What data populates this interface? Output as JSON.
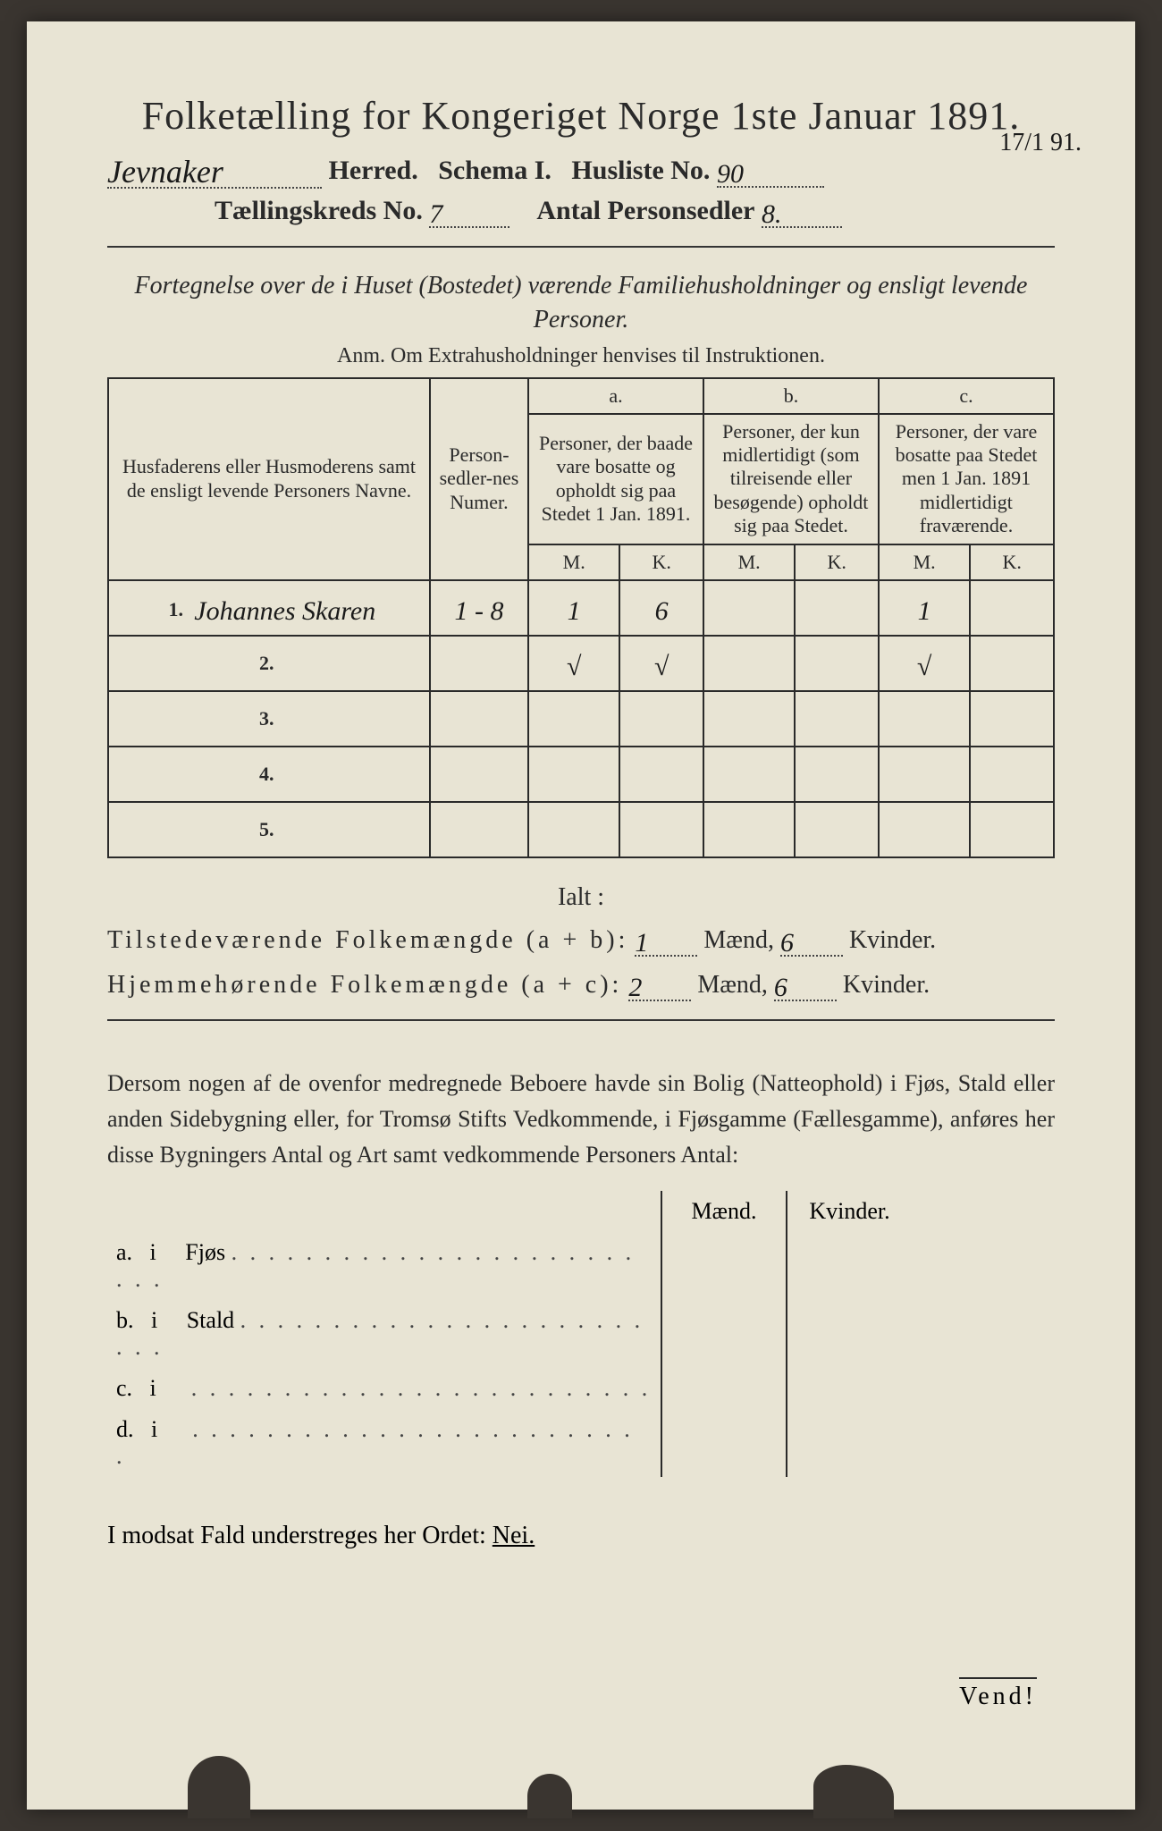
{
  "colors": {
    "paper": "#e8e4d4",
    "ink": "#2a2a2a",
    "handwriting": "#1a1a1a",
    "background": "#3a3530"
  },
  "typography": {
    "title_fontsize_pt": 33,
    "body_fontsize_pt": 20,
    "handwriting_family": "cursive"
  },
  "header": {
    "title": "Folketælling for Kongeriget Norge 1ste Januar 1891.",
    "herred_value": "Jevnaker",
    "herred_label": "Herred.",
    "schema_label": "Schema I.",
    "husliste_label": "Husliste No.",
    "husliste_value": "90",
    "side_note": "17/1 91.",
    "kreds_label": "Tællingskreds No.",
    "kreds_value": "7",
    "antal_label": "Antal Personsedler",
    "antal_value": "8."
  },
  "subhead": "Fortegnelse over de i Huset (Bostedet) værende Familiehusholdninger og ensligt levende Personer.",
  "anm": "Anm.   Om Extrahusholdninger henvises til Instruktionen.",
  "table": {
    "col_names": "Husfaderens eller Husmoderens samt de ensligt levende Personers Navne.",
    "col_sedler": "Person-sedler-nes Numer.",
    "group_a_head": "a.",
    "group_a_desc": "Personer, der baade vare bosatte og opholdt sig paa Stedet 1 Jan. 1891.",
    "group_b_head": "b.",
    "group_b_desc": "Personer, der kun midlertidigt (som tilreisende eller besøgende) opholdt sig paa Stedet.",
    "group_c_head": "c.",
    "group_c_desc": "Personer, der vare bosatte paa Stedet men 1 Jan. 1891 midlertidigt fraværende.",
    "mk_m": "M.",
    "mk_k": "K.",
    "rows": [
      {
        "n": "1.",
        "name": "Johannes Skaren",
        "sedler": "1 - 8",
        "a_m": "1",
        "a_k": "6",
        "b_m": "",
        "b_k": "",
        "c_m": "1",
        "c_k": ""
      },
      {
        "n": "2.",
        "name": "",
        "sedler": "",
        "a_m": "√",
        "a_k": "√",
        "b_m": "",
        "b_k": "",
        "c_m": "√",
        "c_k": ""
      },
      {
        "n": "3.",
        "name": "",
        "sedler": "",
        "a_m": "",
        "a_k": "",
        "b_m": "",
        "b_k": "",
        "c_m": "",
        "c_k": ""
      },
      {
        "n": "4.",
        "name": "",
        "sedler": "",
        "a_m": "",
        "a_k": "",
        "b_m": "",
        "b_k": "",
        "c_m": "",
        "c_k": ""
      },
      {
        "n": "5.",
        "name": "",
        "sedler": "",
        "a_m": "",
        "a_k": "",
        "b_m": "",
        "b_k": "",
        "c_m": "",
        "c_k": ""
      }
    ]
  },
  "totals": {
    "ialt": "Ialt :",
    "line1_label": "Tilstedeværende Folkemængde (a + b):",
    "line1_m": "1",
    "line1_k": "6",
    "line2_label": "Hjemmehørende Folkemængde (a + c):",
    "line2_m": "2",
    "line2_k": "6",
    "maend": "Mænd,",
    "kvinder": "Kvinder."
  },
  "outbuildings": {
    "intro": "Dersom nogen af de ovenfor medregnede Beboere havde sin Bolig (Natteophold) i Fjøs, Stald eller anden Sidebygning eller, for Tromsø Stifts Vedkommende, i Fjøsgamme (Fællesgamme), anføres her disse Bygningers Antal og Art samt vedkommende Personers Antal:",
    "head_m": "Mænd.",
    "head_k": "Kvinder.",
    "rows": [
      {
        "letter": "a.",
        "i": "i",
        "type": "Fjøs"
      },
      {
        "letter": "b.",
        "i": "i",
        "type": "Stald"
      },
      {
        "letter": "c.",
        "i": "i",
        "type": ""
      },
      {
        "letter": "d.",
        "i": "i",
        "type": ""
      }
    ]
  },
  "footer": {
    "nei_line_pre": "I modsat Fald understreges her Ordet: ",
    "nei": "Nei.",
    "vend": "Vend!"
  }
}
